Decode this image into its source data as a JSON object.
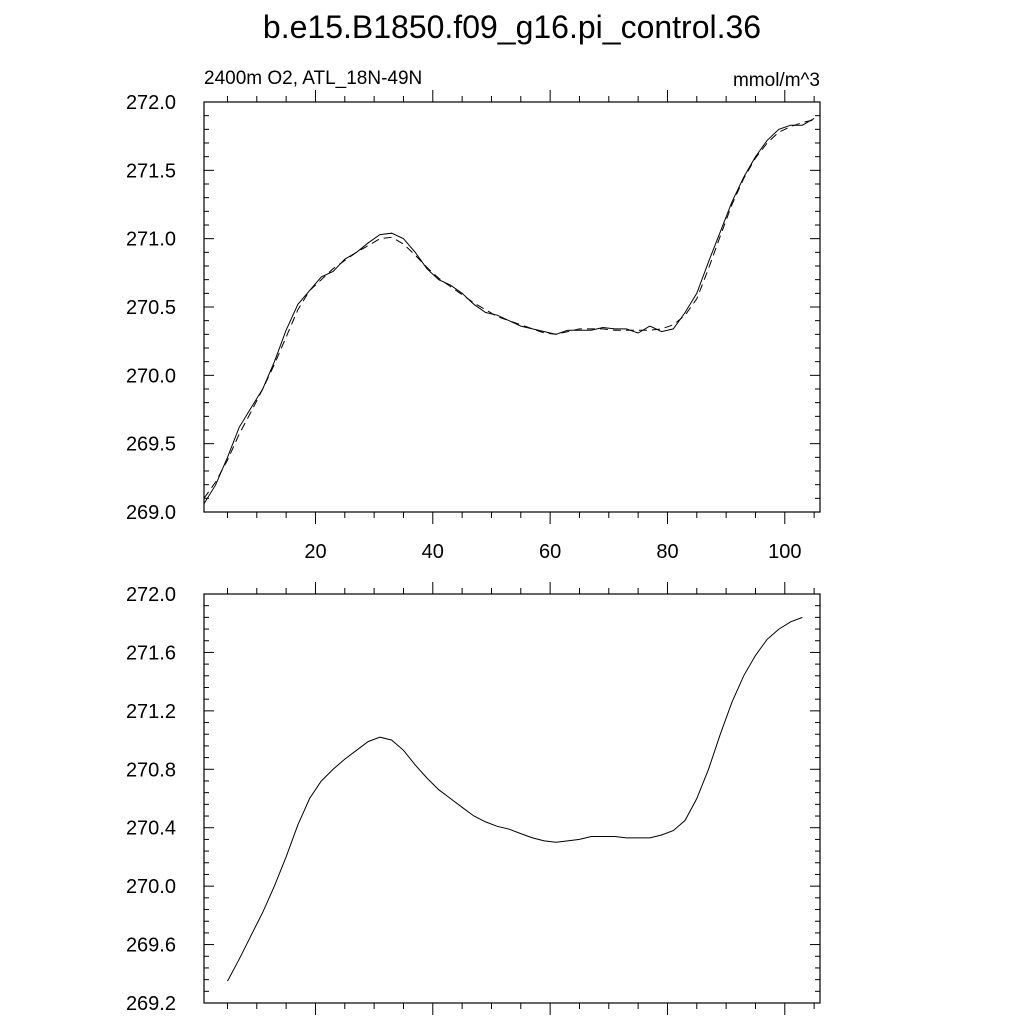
{
  "title": "b.e15.B1850.f09_g16.pi_control.36",
  "subtitle_left": "2400m O2, ATL_18N-49N",
  "subtitle_right": "mmol/m^3",
  "chart_data": [
    {
      "type": "line",
      "title": "",
      "xlabel": "",
      "ylabel": "",
      "xlim": [
        1,
        106
      ],
      "ylim": [
        269.0,
        272.0
      ],
      "xticks": [
        20,
        40,
        60,
        80,
        100
      ],
      "yticks": [
        269.0,
        269.5,
        270.0,
        270.5,
        271.0,
        271.5,
        272.0
      ],
      "ytick_labels": [
        "269.0",
        "269.5",
        "270.0",
        "270.5",
        "271.0",
        "271.5",
        "272.0"
      ],
      "grid": false,
      "series": [
        {
          "style": "solid",
          "x": [
            1,
            3,
            5,
            7,
            9,
            11,
            13,
            15,
            17,
            19,
            21,
            23,
            25,
            27,
            29,
            31,
            33,
            35,
            37,
            39,
            41,
            43,
            45,
            47,
            49,
            51,
            53,
            55,
            57,
            59,
            61,
            63,
            65,
            67,
            69,
            71,
            73,
            75,
            77,
            79,
            81,
            83,
            85,
            87,
            89,
            91,
            93,
            95,
            97,
            99,
            101,
            103,
            105
          ],
          "y": [
            269.06,
            269.2,
            269.4,
            269.62,
            269.76,
            269.9,
            270.1,
            270.33,
            270.52,
            270.62,
            270.72,
            270.76,
            270.85,
            270.9,
            270.97,
            271.03,
            271.04,
            271.0,
            270.9,
            270.78,
            270.7,
            270.66,
            270.6,
            270.52,
            270.46,
            270.44,
            270.4,
            270.36,
            270.34,
            270.32,
            270.3,
            270.33,
            270.33,
            270.33,
            270.35,
            270.34,
            270.34,
            270.31,
            270.36,
            270.32,
            270.34,
            270.46,
            270.6,
            270.83,
            271.05,
            271.27,
            271.45,
            271.6,
            271.72,
            271.8,
            271.83,
            271.83,
            271.88
          ]
        },
        {
          "style": "dashed",
          "x": [
            1,
            3,
            5,
            7,
            9,
            11,
            13,
            15,
            17,
            19,
            21,
            23,
            25,
            27,
            29,
            31,
            33,
            35,
            37,
            39,
            41,
            43,
            45,
            47,
            49,
            51,
            53,
            55,
            57,
            59,
            61,
            63,
            65,
            67,
            69,
            71,
            73,
            75,
            77,
            79,
            81,
            83,
            85,
            87,
            89,
            91,
            93,
            95,
            97,
            99,
            101,
            103,
            105
          ],
          "y": [
            269.1,
            269.22,
            269.38,
            269.57,
            269.73,
            269.9,
            270.08,
            270.28,
            270.48,
            270.62,
            270.7,
            270.78,
            270.84,
            270.9,
            270.95,
            271.0,
            271.01,
            270.96,
            270.88,
            270.79,
            270.71,
            270.65,
            270.59,
            270.53,
            270.48,
            270.43,
            270.4,
            270.37,
            270.34,
            270.31,
            270.3,
            270.32,
            270.34,
            270.34,
            270.34,
            270.33,
            270.33,
            270.33,
            270.33,
            270.34,
            270.37,
            270.44,
            270.56,
            270.78,
            271.02,
            271.25,
            271.44,
            271.59,
            271.7,
            271.78,
            271.82,
            271.85,
            271.87
          ]
        }
      ]
    },
    {
      "type": "line",
      "title": "",
      "xlabel": "",
      "ylabel": "",
      "xlim": [
        1,
        106
      ],
      "ylim": [
        269.2,
        272.0
      ],
      "xticks": [
        20,
        40,
        60,
        80,
        100
      ],
      "yticks": [
        269.2,
        269.6,
        270.0,
        270.4,
        270.8,
        271.2,
        271.6,
        272.0
      ],
      "ytick_labels": [
        "269.2",
        "269.6",
        "270.0",
        "270.4",
        "270.8",
        "271.2",
        "271.6",
        "272.0"
      ],
      "grid": false,
      "series": [
        {
          "style": "solid",
          "x": [
            5,
            7,
            9,
            11,
            13,
            15,
            17,
            19,
            21,
            23,
            25,
            27,
            29,
            31,
            33,
            35,
            37,
            39,
            41,
            43,
            45,
            47,
            49,
            51,
            53,
            55,
            57,
            59,
            61,
            63,
            65,
            67,
            69,
            71,
            73,
            75,
            77,
            79,
            81,
            83,
            85,
            87,
            89,
            91,
            93,
            95,
            97,
            99,
            101,
            103
          ],
          "y": [
            269.35,
            269.5,
            269.66,
            269.82,
            270.0,
            270.2,
            270.42,
            270.6,
            270.72,
            270.8,
            270.87,
            270.93,
            270.99,
            271.02,
            271.0,
            270.93,
            270.83,
            270.74,
            270.66,
            270.6,
            270.54,
            270.48,
            270.44,
            270.41,
            270.39,
            270.36,
            270.33,
            270.31,
            270.3,
            270.31,
            270.32,
            270.34,
            270.34,
            270.34,
            270.33,
            270.33,
            270.33,
            270.35,
            270.38,
            270.45,
            270.6,
            270.8,
            271.04,
            271.26,
            271.44,
            271.58,
            271.69,
            271.76,
            271.81,
            271.84
          ]
        }
      ]
    }
  ]
}
